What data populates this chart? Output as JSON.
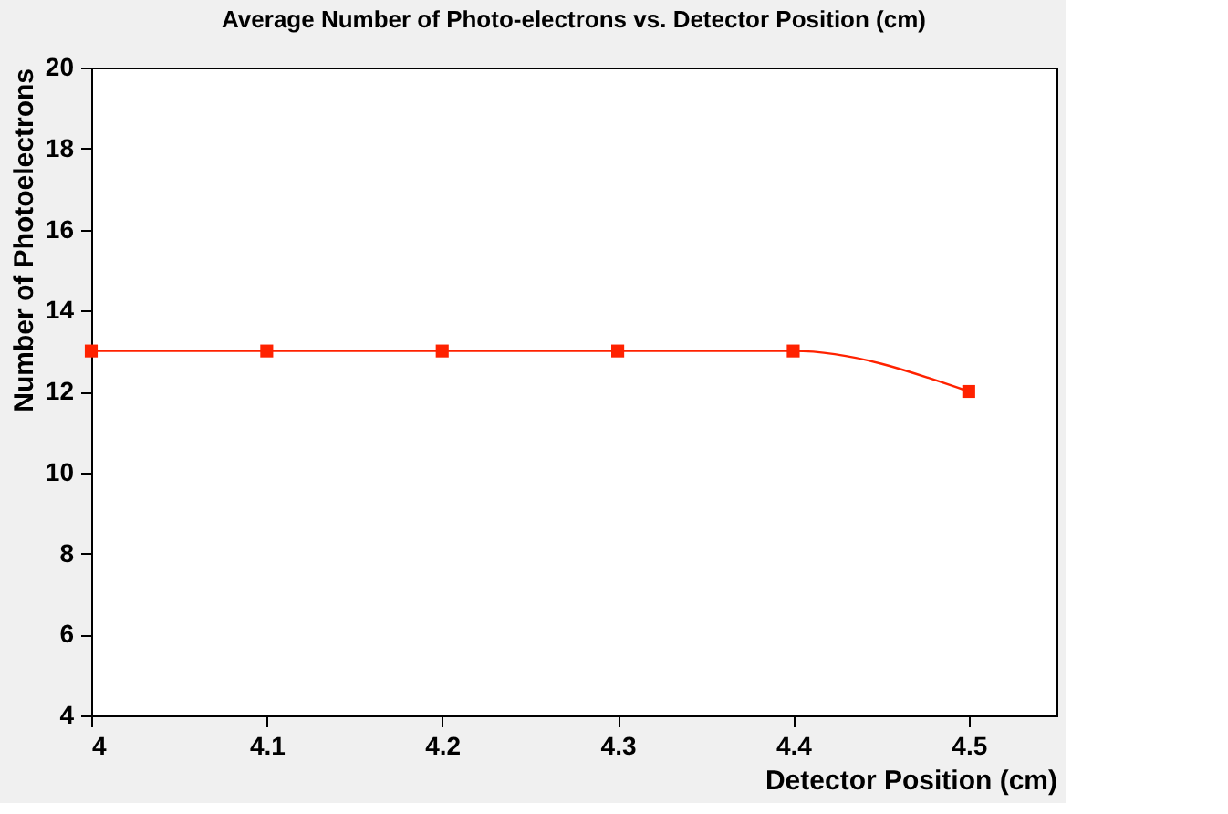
{
  "chart_data": {
    "type": "line",
    "title": "Average Number of Photo-electrons vs. Detector Position (cm)",
    "xlabel": "Detector Position (cm)",
    "ylabel": "Number of Photoelectrons",
    "x": [
      4,
      4.1,
      4.2,
      4.3,
      4.4,
      4.5
    ],
    "series": [
      {
        "color": "#ff2200",
        "values": [
          13,
          13,
          13,
          13,
          13,
          12
        ]
      }
    ],
    "xlim": [
      4,
      4.55
    ],
    "xticks": [
      4,
      4.1,
      4.2,
      4.3,
      4.4,
      4.5
    ],
    "ylim": [
      4,
      20
    ],
    "yticks": [
      4,
      6,
      8,
      10,
      12,
      14,
      16,
      18,
      20
    ],
    "grid": false,
    "marker": "square",
    "line_style": "solid"
  }
}
